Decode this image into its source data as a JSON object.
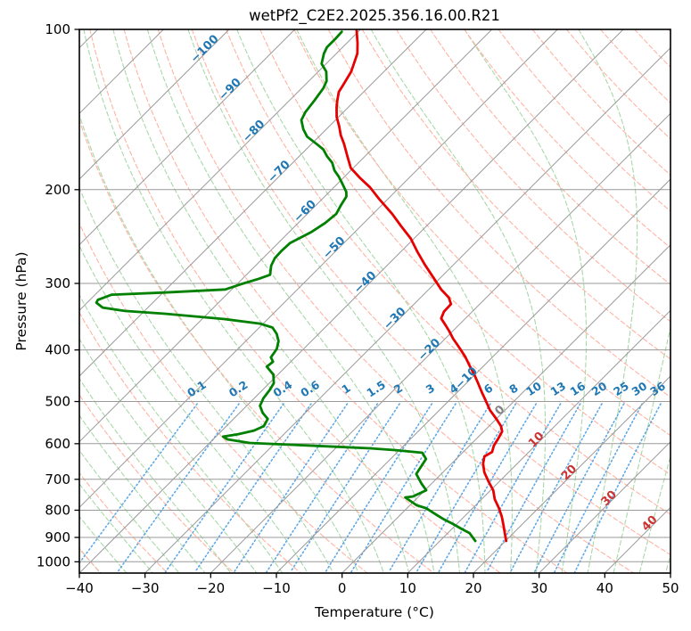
{
  "chart_data": {
    "type": "line",
    "variant": "skew-t-log-p",
    "title": "wetPf2_C2E2.2025.356.16.00.R21",
    "xlabel": "Temperature (°C)",
    "ylabel": "Pressure (hPa)",
    "xlim": [
      -40,
      50
    ],
    "pressure_lim": [
      100,
      1050
    ],
    "skew_degrees": 45,
    "grid": true,
    "x_ticks": [
      -40,
      -30,
      -20,
      -10,
      0,
      10,
      20,
      30,
      40,
      50
    ],
    "y_ticks": [
      100,
      200,
      300,
      400,
      500,
      600,
      700,
      800,
      900,
      1000
    ],
    "isotherms": {
      "start": -120,
      "end": 50,
      "step": 10
    },
    "dry_adiabats": {
      "start": -40,
      "end": 190,
      "step": 10
    },
    "moist_adiabats": {
      "start": -40,
      "end": 124,
      "step": 4
    },
    "mixing_ratios": [
      0.1,
      0.2,
      0.4,
      0.6,
      1,
      1.5,
      2,
      3,
      4,
      6,
      8,
      10,
      13,
      16,
      20,
      25,
      30,
      36
    ],
    "mixing_label_pressure": 480,
    "mixing_line_top_pressure": 505,
    "isotherm_labels": [
      {
        "t": -100,
        "p": 110,
        "color": "#1f77b4"
      },
      {
        "t": -90,
        "p": 131,
        "color": "#1f77b4"
      },
      {
        "t": -80,
        "p": 157,
        "color": "#1f77b4"
      },
      {
        "t": -70,
        "p": 187,
        "color": "#1f77b4"
      },
      {
        "t": -60,
        "p": 222,
        "color": "#1f77b4"
      },
      {
        "t": -50,
        "p": 260,
        "color": "#1f77b4"
      },
      {
        "t": -40,
        "p": 302,
        "color": "#1f77b4"
      },
      {
        "t": -30,
        "p": 353,
        "color": "#1f77b4"
      },
      {
        "t": -20,
        "p": 404,
        "color": "#1f77b4"
      },
      {
        "t": -10,
        "p": 457,
        "color": "#1f77b4"
      },
      {
        "t": 0,
        "p": 525,
        "color": "#808080"
      },
      {
        "t": 10,
        "p": 596,
        "color": "#cc3333"
      },
      {
        "t": 20,
        "p": 687,
        "color": "#cc3333"
      },
      {
        "t": 30,
        "p": 768,
        "color": "#cc3333"
      },
      {
        "t": 40,
        "p": 856,
        "color": "#cc3333"
      }
    ],
    "colors": {
      "temperature": "#e60000",
      "dewpoint": "#008000",
      "isobar": "#9a9a9a",
      "isotherm": "#9a9a9a",
      "dry_adiabat": "#ffb3a3",
      "moist_adiabat": "#a8d8a8",
      "mixing_line": "#4d9fe6",
      "mixing_label": "#1f77b4",
      "axis": "#000000"
    },
    "series": [
      {
        "name": "temperature",
        "legend": "Temperature profile",
        "points_p_t": [
          [
            100,
            -80.6
          ],
          [
            106,
            -78.4
          ],
          [
            111,
            -76.8
          ],
          [
            120,
            -75.0
          ],
          [
            127,
            -74.2
          ],
          [
            131,
            -73.8
          ],
          [
            136,
            -72.7
          ],
          [
            140,
            -71.8
          ],
          [
            146,
            -70.3
          ],
          [
            152,
            -68.5
          ],
          [
            158,
            -66.9
          ],
          [
            164,
            -65.1
          ],
          [
            173,
            -62.7
          ],
          [
            182,
            -60.4
          ],
          [
            190,
            -57.5
          ],
          [
            198,
            -54.5
          ],
          [
            208,
            -51.4
          ],
          [
            222,
            -47.1
          ],
          [
            234,
            -43.9
          ],
          [
            247,
            -40.5
          ],
          [
            261,
            -37.6
          ],
          [
            277,
            -34.3
          ],
          [
            294,
            -30.8
          ],
          [
            308,
            -28.1
          ],
          [
            319,
            -25.7
          ],
          [
            328,
            -24.4
          ],
          [
            339,
            -24.3
          ],
          [
            349,
            -23.7
          ],
          [
            360,
            -21.9
          ],
          [
            369,
            -20.5
          ],
          [
            381,
            -18.8
          ],
          [
            396,
            -16.5
          ],
          [
            412,
            -14.2
          ],
          [
            428,
            -12.2
          ],
          [
            445,
            -10.1
          ],
          [
            462,
            -8.2
          ],
          [
            480,
            -6.3
          ],
          [
            499,
            -4.3
          ],
          [
            519,
            -2.3
          ],
          [
            539,
            0.0
          ],
          [
            556,
            1.8
          ],
          [
            569,
            2.8
          ],
          [
            587,
            3.3
          ],
          [
            605,
            3.7
          ],
          [
            622,
            4.4
          ],
          [
            634,
            3.9
          ],
          [
            654,
            4.8
          ],
          [
            679,
            6.3
          ],
          [
            706,
            8.3
          ],
          [
            734,
            10.4
          ],
          [
            763,
            12.0
          ],
          [
            793,
            14.0
          ],
          [
            824,
            15.8
          ],
          [
            856,
            17.4
          ],
          [
            890,
            19.0
          ],
          [
            914,
            20.1
          ]
        ]
      },
      {
        "name": "dewpoint",
        "legend": "Dewpoint profile",
        "points_p_t": [
          [
            101,
            -82.5
          ],
          [
            104,
            -82.4
          ],
          [
            108,
            -82.4
          ],
          [
            111,
            -81.9
          ],
          [
            116,
            -80.7
          ],
          [
            120,
            -78.8
          ],
          [
            125,
            -77.3
          ],
          [
            129,
            -76.7
          ],
          [
            136,
            -76.2
          ],
          [
            143,
            -75.8
          ],
          [
            148,
            -75.2
          ],
          [
            154,
            -73.5
          ],
          [
            159,
            -71.8
          ],
          [
            164,
            -69.3
          ],
          [
            168,
            -67.4
          ],
          [
            173,
            -65.8
          ],
          [
            178,
            -64.0
          ],
          [
            184,
            -62.5
          ],
          [
            189,
            -60.9
          ],
          [
            194,
            -59.5
          ],
          [
            202,
            -57.4
          ],
          [
            206,
            -56.7
          ],
          [
            214,
            -56.2
          ],
          [
            222,
            -55.6
          ],
          [
            231,
            -55.9
          ],
          [
            240,
            -56.6
          ],
          [
            246,
            -57.4
          ],
          [
            252,
            -58.2
          ],
          [
            261,
            -58.3
          ],
          [
            269,
            -58.2
          ],
          [
            278,
            -57.6
          ],
          [
            289,
            -56.4
          ],
          [
            294,
            -57.5
          ],
          [
            301,
            -59.4
          ],
          [
            308,
            -61.0
          ],
          [
            312,
            -69.7
          ],
          [
            315,
            -77.5
          ],
          [
            322,
            -78.8
          ],
          [
            326,
            -78.6
          ],
          [
            333,
            -76.9
          ],
          [
            338,
            -73.0
          ],
          [
            342,
            -66.5
          ],
          [
            350,
            -56.6
          ],
          [
            357,
            -50.5
          ],
          [
            363,
            -48.0
          ],
          [
            373,
            -46.4
          ],
          [
            385,
            -45.0
          ],
          [
            398,
            -44.1
          ],
          [
            405,
            -43.9
          ],
          [
            413,
            -43.7
          ],
          [
            421,
            -42.7
          ],
          [
            430,
            -42.9
          ],
          [
            445,
            -40.7
          ],
          [
            462,
            -39.3
          ],
          [
            476,
            -38.9
          ],
          [
            493,
            -38.6
          ],
          [
            509,
            -38.0
          ],
          [
            525,
            -36.5
          ],
          [
            539,
            -34.8
          ],
          [
            556,
            -34.3
          ],
          [
            567,
            -35.1
          ],
          [
            576,
            -37.0
          ],
          [
            582,
            -38.9
          ],
          [
            589,
            -37.8
          ],
          [
            598,
            -33.9
          ],
          [
            603,
            -27.0
          ],
          [
            608,
            -20.0
          ],
          [
            612,
            -14.8
          ],
          [
            617,
            -10.5
          ],
          [
            624,
            -6.1
          ],
          [
            641,
            -4.6
          ],
          [
            684,
            -3.8
          ],
          [
            711,
            -1.7
          ],
          [
            734,
            0.2
          ],
          [
            754,
            -0.9
          ],
          [
            757,
            -1.9
          ],
          [
            783,
            1.0
          ],
          [
            793,
            2.9
          ],
          [
            817,
            5.6
          ],
          [
            833,
            7.4
          ],
          [
            849,
            9.4
          ],
          [
            866,
            11.3
          ],
          [
            883,
            13.3
          ],
          [
            914,
            15.4
          ]
        ]
      }
    ]
  }
}
